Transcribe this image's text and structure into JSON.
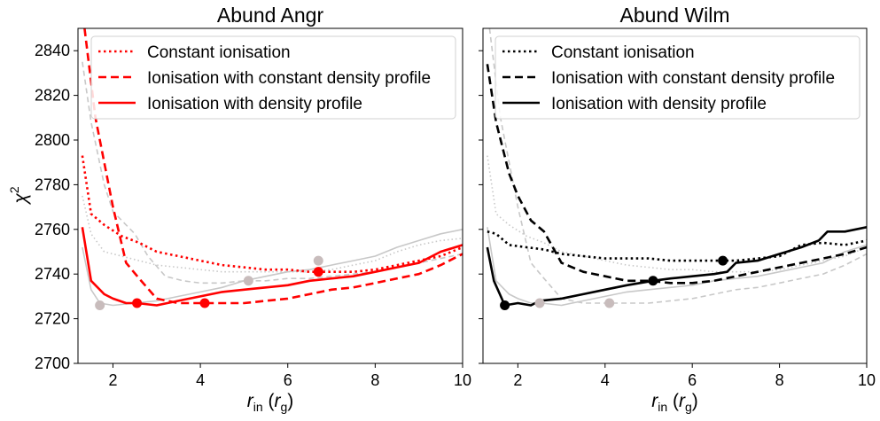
{
  "chart_data": [
    {
      "type": "line",
      "title": "Abund Angr",
      "xlabel_main": "r",
      "xlabel_sub": "in",
      "xlabel_unit_main": "r",
      "xlabel_unit_sub": "g",
      "ylabel_main": "χ",
      "ylabel_sup": "2",
      "xlim": [
        1.2,
        10
      ],
      "ylim": [
        2700,
        2850
      ],
      "xticks": [
        2,
        4,
        6,
        8,
        10
      ],
      "yticks": [
        2700,
        2720,
        2740,
        2760,
        2780,
        2800,
        2820,
        2840
      ],
      "legend_position": "top-right",
      "series": [
        {
          "name": "Constant ionisation",
          "style": "dotted",
          "color": "#ff0000",
          "highlight": true,
          "x": [
            1.3,
            1.5,
            1.8,
            2.2,
            2.6,
            3.0,
            3.5,
            4.0,
            4.5,
            5.0,
            5.5,
            6.0,
            6.5,
            7.0,
            7.5,
            8.0,
            8.5,
            9.0,
            9.5,
            10.0
          ],
          "y": [
            2793,
            2767,
            2762,
            2757,
            2754,
            2750,
            2748,
            2746,
            2744,
            2743,
            2742,
            2742,
            2741,
            2741,
            2741,
            2742,
            2744,
            2746,
            2748,
            2752
          ]
        },
        {
          "name": "Ionisation with constant density profile",
          "style": "dashed",
          "color": "#ff0000",
          "highlight": true,
          "x": [
            1.35,
            1.6,
            2.0,
            2.3,
            2.6,
            3.0,
            3.5,
            4.0,
            4.5,
            5.0,
            5.5,
            6.0,
            6.5,
            7.0,
            7.5,
            8.0,
            8.5,
            9.0,
            9.5,
            10.0
          ],
          "y": [
            2850,
            2810,
            2770,
            2745,
            2738,
            2729,
            2727,
            2727,
            2727,
            2727,
            2728,
            2729,
            2731,
            2733,
            2734,
            2736,
            2738,
            2740,
            2744,
            2749
          ]
        },
        {
          "name": "Ionisation with density profile",
          "style": "solid",
          "color": "#ff0000",
          "highlight": true,
          "x": [
            1.3,
            1.5,
            1.8,
            2.0,
            2.3,
            2.55,
            3.0,
            3.5,
            4.0,
            4.5,
            5.0,
            5.5,
            6.0,
            6.5,
            7.0,
            7.5,
            8.0,
            8.5,
            9.0,
            9.5,
            10.0
          ],
          "y": [
            2761,
            2737,
            2731,
            2729,
            2727,
            2727,
            2726,
            2728,
            2730,
            2732,
            2733,
            2734,
            2735,
            2737,
            2738,
            2739,
            2741,
            2743,
            2745,
            2750,
            2753
          ]
        },
        {
          "name": "",
          "style": "dotted",
          "color": "#c8c8c8",
          "highlight": false,
          "x": [
            1.3,
            1.5,
            1.8,
            2.2,
            2.6,
            3.0,
            3.5,
            4.0,
            4.5,
            5.0,
            5.5,
            6.0,
            6.5,
            7.0,
            7.5,
            8.0,
            8.5,
            9.0,
            9.5,
            10.0
          ],
          "y": [
            2775,
            2758,
            2750,
            2748,
            2746,
            2744,
            2743,
            2742,
            2741,
            2741,
            2741,
            2741,
            2741,
            2742,
            2744,
            2746,
            2750,
            2753,
            2755,
            2756
          ]
        },
        {
          "name": "",
          "style": "dashed",
          "color": "#c8c8c8",
          "highlight": false,
          "x": [
            1.3,
            1.5,
            1.8,
            2.0,
            2.3,
            2.5,
            2.8,
            3.2,
            3.6,
            4.0,
            4.5,
            5.0,
            5.5,
            6.0,
            6.5,
            7.0,
            7.5,
            8.0,
            8.5,
            9.0,
            9.5,
            10.0
          ],
          "y": [
            2835,
            2808,
            2780,
            2768,
            2762,
            2758,
            2748,
            2739,
            2737,
            2736,
            2736,
            2737,
            2737,
            2738,
            2738,
            2739,
            2740,
            2741,
            2743,
            2745,
            2747,
            2749
          ]
        },
        {
          "name": "",
          "style": "solid",
          "color": "#c8c8c8",
          "highlight": false,
          "x": [
            1.3,
            1.5,
            1.7,
            2.0,
            2.5,
            3.0,
            3.5,
            4.0,
            4.5,
            5.0,
            5.5,
            6.0,
            6.5,
            7.0,
            7.5,
            8.0,
            8.5,
            9.0,
            9.5,
            10.0
          ],
          "y": [
            2752,
            2733,
            2727,
            2726,
            2727,
            2728,
            2730,
            2732,
            2734,
            2737,
            2739,
            2741,
            2742,
            2744,
            2746,
            2748,
            2752,
            2755,
            2758,
            2760
          ]
        }
      ],
      "minima": [
        {
          "x": 2.55,
          "y": 2727,
          "color": "#ff0000"
        },
        {
          "x": 4.1,
          "y": 2727,
          "color": "#ff0000"
        },
        {
          "x": 6.7,
          "y": 2741,
          "color": "#ff0000"
        },
        {
          "x": 1.7,
          "y": 2726,
          "color": "#c8bcbc"
        },
        {
          "x": 5.1,
          "y": 2737,
          "color": "#c8bcbc"
        },
        {
          "x": 6.7,
          "y": 2746,
          "color": "#c8bcbc"
        }
      ]
    },
    {
      "type": "line",
      "title": "Abund Wilm",
      "xlabel_main": "r",
      "xlabel_sub": "in",
      "xlabel_unit_main": "r",
      "xlabel_unit_sub": "g",
      "xlim": [
        1.2,
        10
      ],
      "ylim": [
        2700,
        2850
      ],
      "xticks": [
        2,
        4,
        6,
        8,
        10
      ],
      "legend_position": "top-right",
      "series": [
        {
          "name": "Constant ionisation",
          "style": "dotted",
          "color": "#000000",
          "highlight": true,
          "x": [
            1.3,
            1.5,
            1.8,
            2.2,
            2.6,
            3.0,
            3.5,
            4.0,
            4.5,
            5.0,
            5.5,
            6.0,
            6.5,
            7.0,
            7.5,
            8.0,
            8.5,
            9.0,
            9.5,
            10.0
          ],
          "y": [
            2759,
            2758,
            2753,
            2752,
            2751,
            2749,
            2748,
            2747,
            2747,
            2747,
            2746,
            2746,
            2746,
            2746,
            2747,
            2748,
            2753,
            2754,
            2753,
            2755
          ]
        },
        {
          "name": "Ionisation with constant density profile",
          "style": "dashed",
          "color": "#000000",
          "highlight": true,
          "x": [
            1.3,
            1.5,
            1.8,
            2.0,
            2.3,
            2.6,
            3.0,
            3.5,
            4.0,
            4.5,
            5.0,
            5.5,
            6.0,
            6.5,
            7.0,
            7.5,
            8.0,
            8.5,
            9.0,
            9.5,
            10.0
          ],
          "y": [
            2834,
            2808,
            2785,
            2775,
            2764,
            2759,
            2745,
            2741,
            2739,
            2737,
            2737,
            2736,
            2736,
            2737,
            2739,
            2741,
            2743,
            2745,
            2747,
            2749,
            2752
          ]
        },
        {
          "name": "Ionisation with density profile",
          "style": "solid",
          "color": "#000000",
          "highlight": true,
          "x": [
            1.3,
            1.45,
            1.7,
            2.0,
            2.3,
            2.5,
            3.0,
            3.5,
            4.0,
            4.5,
            5.1,
            5.5,
            6.0,
            6.5,
            6.8,
            7.0,
            7.5,
            8.0,
            8.5,
            8.9,
            9.1,
            9.5,
            10.0
          ],
          "y": [
            2752,
            2737,
            2726,
            2727,
            2726,
            2728,
            2729,
            2731,
            2733,
            2735,
            2737,
            2738,
            2739,
            2740,
            2741,
            2745,
            2746,
            2749,
            2752,
            2755,
            2759,
            2759,
            2761
          ]
        },
        {
          "name": "",
          "style": "dotted",
          "color": "#c8c8c8",
          "highlight": false,
          "x": [
            1.3,
            1.5,
            1.8,
            2.2,
            2.6,
            3.0,
            3.5,
            4.0,
            4.5,
            5.0,
            5.5,
            6.0,
            6.5,
            7.0,
            7.5,
            8.0,
            8.5,
            9.0,
            9.5,
            10.0
          ],
          "y": [
            2793,
            2767,
            2762,
            2757,
            2754,
            2750,
            2748,
            2746,
            2744,
            2743,
            2742,
            2742,
            2741,
            2741,
            2741,
            2742,
            2744,
            2746,
            2748,
            2752
          ]
        },
        {
          "name": "",
          "style": "dashed",
          "color": "#c8c8c8",
          "highlight": false,
          "x": [
            1.35,
            1.6,
            2.0,
            2.3,
            2.6,
            3.0,
            3.5,
            4.0,
            4.5,
            5.0,
            5.5,
            6.0,
            6.5,
            7.0,
            7.5,
            8.0,
            8.5,
            9.0,
            9.5,
            10.0
          ],
          "y": [
            2850,
            2810,
            2770,
            2745,
            2738,
            2729,
            2727,
            2727,
            2727,
            2727,
            2728,
            2729,
            2731,
            2733,
            2734,
            2736,
            2738,
            2740,
            2744,
            2749
          ]
        },
        {
          "name": "",
          "style": "solid",
          "color": "#c8c8c8",
          "highlight": false,
          "x": [
            1.3,
            1.5,
            1.8,
            2.0,
            2.3,
            2.55,
            3.0,
            3.5,
            4.0,
            4.5,
            5.0,
            5.5,
            6.0,
            6.5,
            7.0,
            7.5,
            8.0,
            8.5,
            9.0,
            9.5,
            10.0
          ],
          "y": [
            2761,
            2737,
            2731,
            2729,
            2727,
            2727,
            2726,
            2728,
            2730,
            2732,
            2733,
            2734,
            2735,
            2737,
            2738,
            2739,
            2741,
            2743,
            2745,
            2750,
            2753
          ]
        }
      ],
      "minima": [
        {
          "x": 1.7,
          "y": 2726,
          "color": "#000000"
        },
        {
          "x": 5.1,
          "y": 2737,
          "color": "#000000"
        },
        {
          "x": 6.7,
          "y": 2746,
          "color": "#000000"
        },
        {
          "x": 2.5,
          "y": 2727,
          "color": "#c8bcbc"
        },
        {
          "x": 4.1,
          "y": 2727,
          "color": "#c8bcbc"
        }
      ]
    }
  ]
}
